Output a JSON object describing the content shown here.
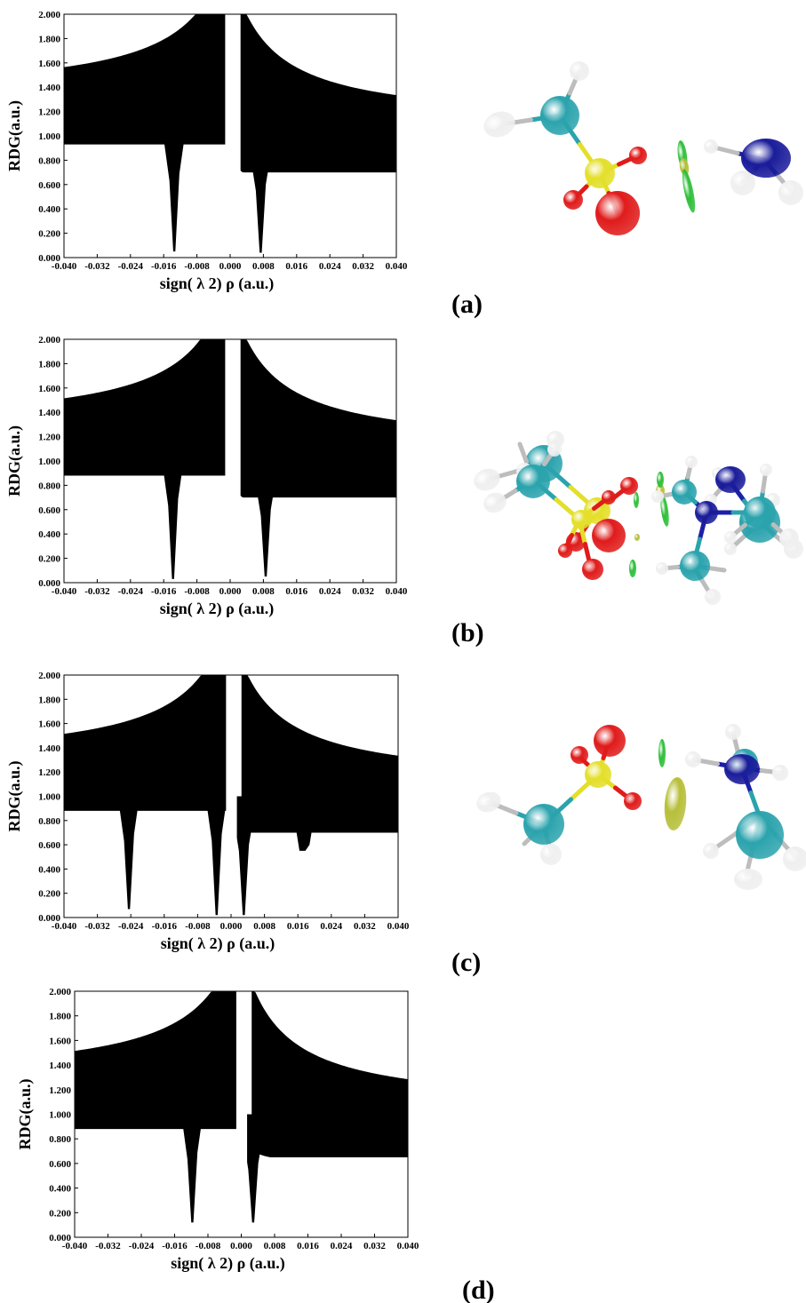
{
  "figure": {
    "panel_labels": [
      "(a)",
      "(b)",
      "(c)",
      "(d)"
    ],
    "molecule_colors": {
      "carbon": "#2ba3ad",
      "sulfur": "#e3df2a",
      "oxygen": "#e01b1b",
      "nitrogen": "#1c1fa8",
      "hydrogen": "#efefef",
      "isosurface_green": "#2fbf3a",
      "isosurface_yellow": "#b7bf3a",
      "isosurface_blue": "#1a1c9a"
    }
  },
  "chart_data": [
    {
      "panel": "(a)",
      "type": "scatter",
      "xlabel": "sign( λ 2) ρ  (a.u.)",
      "ylabel": "RDG(a.u.)",
      "xlim": [
        -0.04,
        0.04
      ],
      "ylim": [
        0.0,
        2.0
      ],
      "xticks": [
        "-0.040",
        "-0.032",
        "-0.024",
        "-0.016",
        "-0.008",
        "0.000",
        "0.008",
        "0.016",
        "0.024",
        "0.032",
        "0.040"
      ],
      "yticks": [
        "0.000",
        "0.200",
        "0.400",
        "0.600",
        "0.800",
        "1.000",
        "1.200",
        "1.400",
        "1.600",
        "1.800",
        "2.000"
      ],
      "spikes": [
        {
          "x": -0.0135,
          "rdg_min": 0.05
        },
        {
          "x": 0.0073,
          "rdg_min": 0.04
        }
      ],
      "wings": {
        "left_y_at_min_x": 1.15,
        "right_y_at_max_x": 0.9
      }
    },
    {
      "panel": "(b)",
      "type": "scatter",
      "xlabel": "sign( λ 2) ρ  (a.u.)",
      "ylabel": "RDG(a.u.)",
      "xlim": [
        -0.04,
        0.04
      ],
      "ylim": [
        0.0,
        2.0
      ],
      "xticks": [
        "-0.040",
        "-0.032",
        "-0.024",
        "-0.016",
        "-0.008",
        "0.000",
        "0.008",
        "0.016",
        "0.024",
        "0.032",
        "0.040"
      ],
      "yticks": [
        "0.000",
        "0.200",
        "0.400",
        "0.600",
        "0.800",
        "1.000",
        "1.200",
        "1.400",
        "1.600",
        "1.800",
        "2.000"
      ],
      "spikes": [
        {
          "x": -0.0138,
          "rdg_min": 0.03
        },
        {
          "x": 0.0085,
          "rdg_min": 0.05
        }
      ],
      "wings": {
        "left_y_at_min_x": 1.1,
        "right_y_at_max_x": 0.9
      }
    },
    {
      "panel": "(c)",
      "type": "scatter",
      "xlabel": "sign( λ 2) ρ  (a.u.)",
      "ylabel": "RDG(a.u.)",
      "xlim": [
        -0.04,
        0.04
      ],
      "ylim": [
        0.0,
        2.0
      ],
      "xticks": [
        "-0.040",
        "-0.032",
        "-0.024",
        "-0.016",
        "-0.008",
        "0.000",
        "0.008",
        "0.016",
        "0.024",
        "0.032",
        "0.040"
      ],
      "yticks": [
        "0.000",
        "0.200",
        "0.400",
        "0.600",
        "0.800",
        "1.000",
        "1.200",
        "1.400",
        "1.600",
        "1.800",
        "2.000"
      ],
      "spikes": [
        {
          "x": -0.0245,
          "rdg_min": 0.07
        },
        {
          "x": -0.0035,
          "rdg_min": 0.02
        },
        {
          "x": 0.003,
          "rdg_min": 0.02
        },
        {
          "x": 0.0175,
          "rdg_min": 0.55
        }
      ],
      "wings": {
        "left_y_at_min_x": 1.1,
        "right_y_at_max_x": 0.9
      }
    },
    {
      "panel": "(d)",
      "type": "scatter",
      "xlabel": "sign( λ 2) ρ  (a.u.)",
      "ylabel": "RDG(a.u.)",
      "xlim": [
        -0.04,
        0.04
      ],
      "ylim": [
        0.0,
        2.0
      ],
      "xticks": [
        "-0.040",
        "-0.032",
        "-0.024",
        "-0.016",
        "-0.008",
        "0.000",
        "0.008",
        "0.016",
        "0.024",
        "0.032",
        "0.040"
      ],
      "yticks": [
        "0.000",
        "0.200",
        "0.400",
        "0.600",
        "0.800",
        "1.000",
        "1.200",
        "1.400",
        "1.600",
        "1.800",
        "2.000"
      ],
      "spikes": [
        {
          "x": -0.0118,
          "rdg_min": 0.12
        },
        {
          "x": 0.0028,
          "rdg_min": 0.12
        }
      ],
      "wings": {
        "left_y_at_min_x": 1.1,
        "right_y_at_max_x": 0.85
      }
    }
  ]
}
